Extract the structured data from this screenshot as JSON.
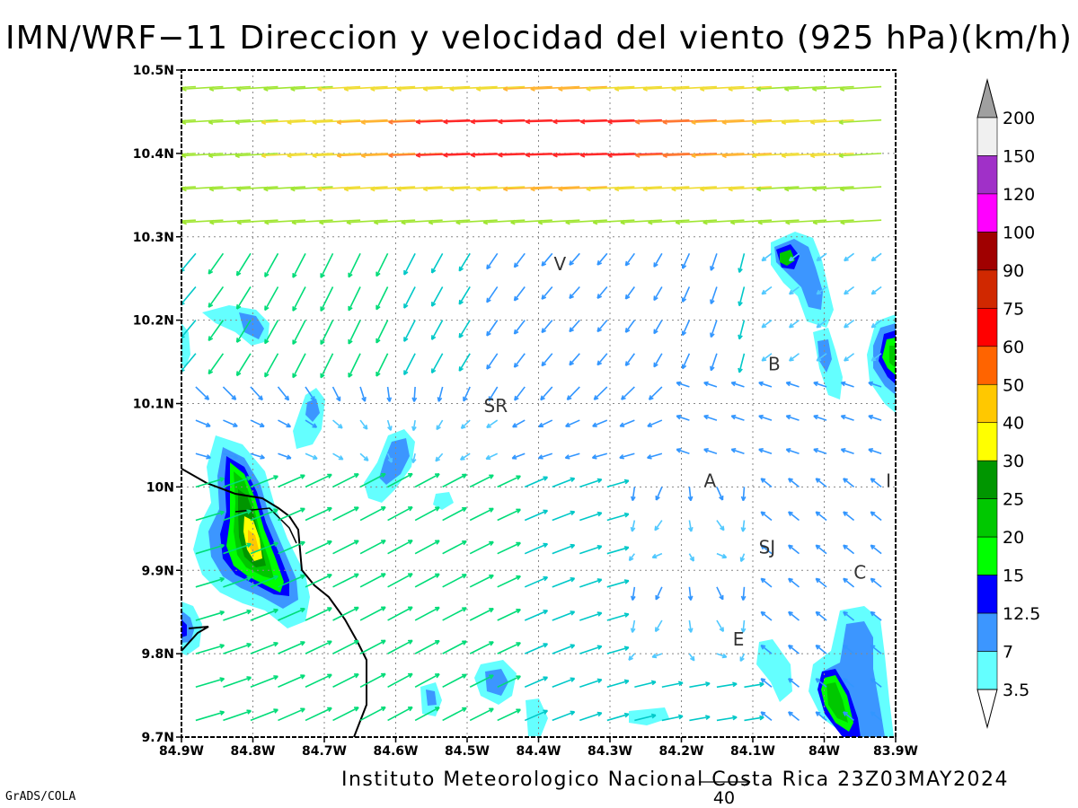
{
  "title": "IMN/WRF−11 Direccion y velocidad del viento (925 hPa)(km/h)",
  "credit": "Instituto Meteorologico Nacional Costa Rica  23Z03MAY2024",
  "software": "GrADS/COLA",
  "reference_vector_label": "40",
  "map": {
    "lat_range": [
      9.7,
      10.5
    ],
    "lon_range": [
      -84.9,
      -83.9
    ],
    "lat_ticks": [
      "10.5N",
      "10.4N",
      "10.3N",
      "10.2N",
      "10.1N",
      "10N",
      "9.9N",
      "9.8N",
      "9.7N"
    ],
    "lon_ticks": [
      "84.9W",
      "84.8W",
      "84.7W",
      "84.6W",
      "84.5W",
      "84.4W",
      "84.3W",
      "84.2W",
      "84.1W",
      "84W",
      "83.9W"
    ],
    "grid": "dotted",
    "place_labels": [
      {
        "text": "V",
        "lat": 10.26,
        "lon": -84.37
      },
      {
        "text": "B",
        "lat": 10.14,
        "lon": -84.07
      },
      {
        "text": "SR",
        "lat": 10.09,
        "lon": -84.46
      },
      {
        "text": "A",
        "lat": 10.0,
        "lon": -84.16
      },
      {
        "text": "I",
        "lat": 10.0,
        "lon": -83.91
      },
      {
        "text": "SJ",
        "lat": 9.92,
        "lon": -84.08
      },
      {
        "text": "C",
        "lat": 9.89,
        "lon": -83.95
      },
      {
        "text": "E",
        "lat": 9.81,
        "lon": -84.12
      }
    ]
  },
  "colorbar": {
    "labels": [
      "200",
      "150",
      "120",
      "100",
      "90",
      "75",
      "60",
      "50",
      "40",
      "30",
      "25",
      "20",
      "15",
      "12.5",
      "7",
      "3.5"
    ],
    "colors": [
      "#a0a0a0",
      "#f0f0f0",
      "#a030c8",
      "#ff00ff",
      "#a00000",
      "#d02800",
      "#ff0000",
      "#ff6400",
      "#ffc800",
      "#ffff00",
      "#009600",
      "#00c800",
      "#00ff00",
      "#0000ff",
      "#3c96ff",
      "#64ffff"
    ]
  },
  "speed_colors": [
    "#50c8ff",
    "#3296ff",
    "#00c8c8",
    "#00dc78",
    "#00c800",
    "#a0e632",
    "#f0dc32",
    "#ffb432",
    "#ff7832",
    "#ff2828"
  ]
}
